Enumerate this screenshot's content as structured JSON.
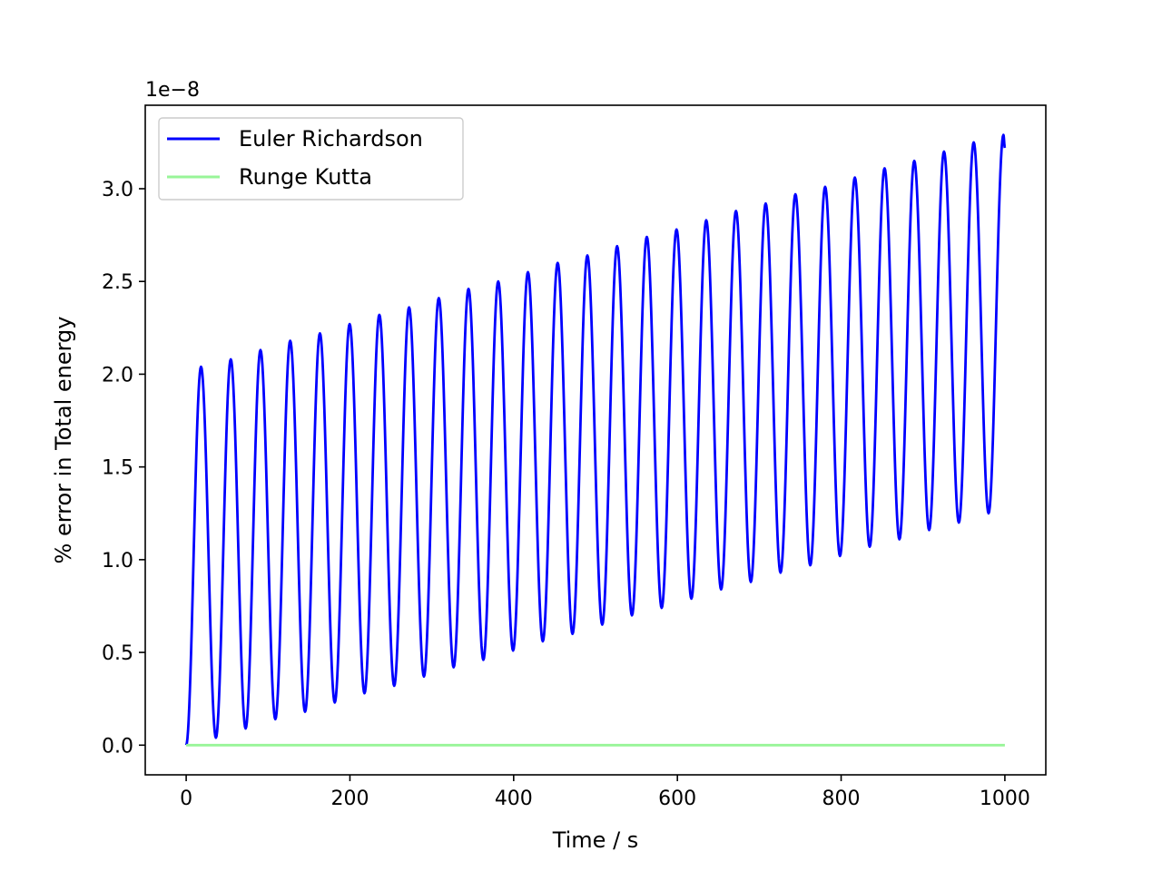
{
  "chart_data": {
    "type": "line",
    "title": "",
    "xlabel": "Time / s",
    "ylabel": "% error in Total energy",
    "y_offset_label": "1e−8",
    "xlim": [
      -50,
      1050
    ],
    "ylim": [
      -0.16,
      3.45
    ],
    "y_scale_multiplier": 1e-08,
    "x_ticks": [
      0,
      200,
      400,
      600,
      800,
      1000
    ],
    "x_tick_labels": [
      "0",
      "200",
      "400",
      "600",
      "800",
      "1000"
    ],
    "y_ticks": [
      0.0,
      0.5,
      1.0,
      1.5,
      2.0,
      2.5,
      3.0
    ],
    "y_tick_labels": [
      "0.0",
      "0.5",
      "1.0",
      "1.5",
      "2.0",
      "2.5",
      "3.0"
    ],
    "grid": false,
    "legend_position": "top-left",
    "series": [
      {
        "name": "Euler Richardson",
        "color": "#0000ff",
        "period": 36.3,
        "peak_values": [
          2.04,
          2.08,
          2.13,
          2.18,
          2.22,
          2.27,
          2.32,
          2.36,
          2.41,
          2.46,
          2.5,
          2.55,
          2.6,
          2.64,
          2.69,
          2.74,
          2.78,
          2.83,
          2.88,
          2.92,
          2.97,
          3.01,
          3.06,
          3.11,
          3.15,
          3.2,
          3.25,
          3.29
        ],
        "trough_values": [
          0.04,
          0.09,
          0.14,
          0.18,
          0.23,
          0.28,
          0.32,
          0.37,
          0.42,
          0.46,
          0.51,
          0.56,
          0.6,
          0.65,
          0.7,
          0.74,
          0.79,
          0.84,
          0.88,
          0.93,
          0.97,
          1.02,
          1.07,
          1.11,
          1.16,
          1.2,
          1.25
        ],
        "start": [
          0,
          0.0
        ],
        "end": [
          1000,
          3.22
        ]
      },
      {
        "name": "Runge Kutta",
        "color": "#98f598",
        "x": [
          0,
          1000
        ],
        "values": [
          0.0,
          0.0
        ]
      }
    ]
  }
}
